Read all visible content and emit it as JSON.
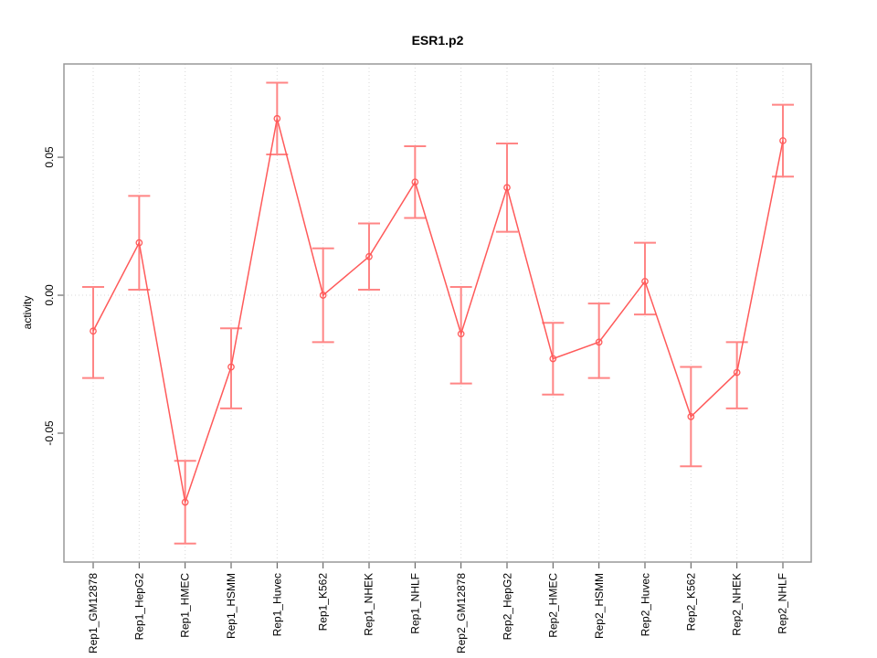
{
  "window": {
    "background": "#ffffff"
  },
  "chart_data": {
    "type": "line",
    "title": "ESR1.p2",
    "xlabel": "",
    "ylabel": "activity",
    "categories": [
      "Rep1_GM12878",
      "Rep1_HepG2",
      "Rep1_HMEC",
      "Rep1_HSMM",
      "Rep1_Huvec",
      "Rep1_K562",
      "Rep1_NHEK",
      "Rep1_NHLF",
      "Rep2_GM12878",
      "Rep2_HepG2",
      "Rep2_HMEC",
      "Rep2_HSMM",
      "Rep2_Huvec",
      "Rep2_K562",
      "Rep2_NHEK",
      "Rep2_NHLF"
    ],
    "series": [
      {
        "name": "ESR1.p2 activity",
        "marker": "open-circle",
        "line_color": "#ff5a5a",
        "error_bar_color": "#ff8585",
        "values": [
          -0.013,
          0.019,
          -0.075,
          -0.026,
          0.064,
          0.0,
          0.014,
          0.041,
          -0.014,
          0.039,
          -0.023,
          -0.017,
          0.005,
          -0.044,
          -0.028,
          0.056
        ],
        "error_low": [
          -0.03,
          0.002,
          -0.09,
          -0.041,
          0.051,
          -0.017,
          0.002,
          0.028,
          -0.032,
          0.023,
          -0.036,
          -0.03,
          -0.007,
          -0.062,
          -0.041,
          0.043
        ],
        "error_high": [
          0.003,
          0.036,
          -0.06,
          -0.012,
          0.077,
          0.017,
          0.026,
          0.054,
          0.003,
          0.055,
          -0.01,
          -0.003,
          0.019,
          -0.026,
          -0.017,
          0.069
        ]
      }
    ],
    "y_ticks": [
      {
        "value": -0.05,
        "label": "-0.05"
      },
      {
        "value": 0.0,
        "label": "0.00"
      },
      {
        "value": 0.05,
        "label": "0.05"
      }
    ],
    "ylim": [
      -0.0967,
      0.0838
    ],
    "legend": "none",
    "grid": {
      "vertical_per_category": true,
      "horizontal_at_zero": true,
      "style": "dotted",
      "color": "#d9d9d9"
    },
    "box_color": "#999999",
    "tick_color": "#4d4d4d"
  }
}
